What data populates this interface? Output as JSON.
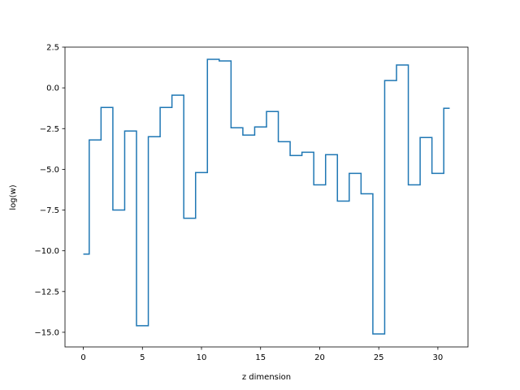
{
  "chart_data": {
    "type": "line",
    "drawstyle": "steps-mid",
    "title": "",
    "xlabel": "z dimension",
    "ylabel": "log(w)",
    "xlim": [
      -1.55,
      32.55
    ],
    "ylim": [
      -15.9,
      2.5
    ],
    "grid": false,
    "legend": "none",
    "x_ticks": [
      0,
      5,
      10,
      15,
      20,
      25,
      30
    ],
    "x_tick_labels": [
      "0",
      "5",
      "10",
      "15",
      "20",
      "25",
      "30"
    ],
    "y_ticks": [
      2.5,
      0,
      -2.5,
      -5,
      -7.5,
      -10,
      -12.5,
      -15
    ],
    "y_tick_labels": [
      "2.5",
      "0.0",
      "−2.5",
      "−5.0",
      "−7.5",
      "−10.0",
      "−12.5",
      "−15.0"
    ],
    "colors": {
      "series": "#1f77b4",
      "axes": "#000000",
      "background": "#ffffff"
    },
    "series": [
      {
        "x": [
          0,
          1,
          2,
          3,
          4,
          5,
          6,
          7,
          8,
          9,
          10,
          11,
          12,
          13,
          14,
          15,
          16,
          17,
          18,
          19,
          20,
          21,
          22,
          23,
          24,
          25,
          26,
          27,
          28,
          29,
          30,
          31
        ],
        "values": [
          -10.2,
          -3.2,
          -1.2,
          -7.5,
          -2.65,
          -14.6,
          -3.0,
          -1.2,
          -0.45,
          -8.0,
          -5.2,
          1.75,
          1.65,
          -2.45,
          -2.9,
          -2.4,
          -1.45,
          -3.3,
          -4.15,
          -3.95,
          -5.95,
          -4.1,
          -6.95,
          -5.25,
          -6.5,
          -15.1,
          0.45,
          1.4,
          -5.95,
          -3.05,
          -5.25,
          -1.25
        ]
      }
    ]
  }
}
